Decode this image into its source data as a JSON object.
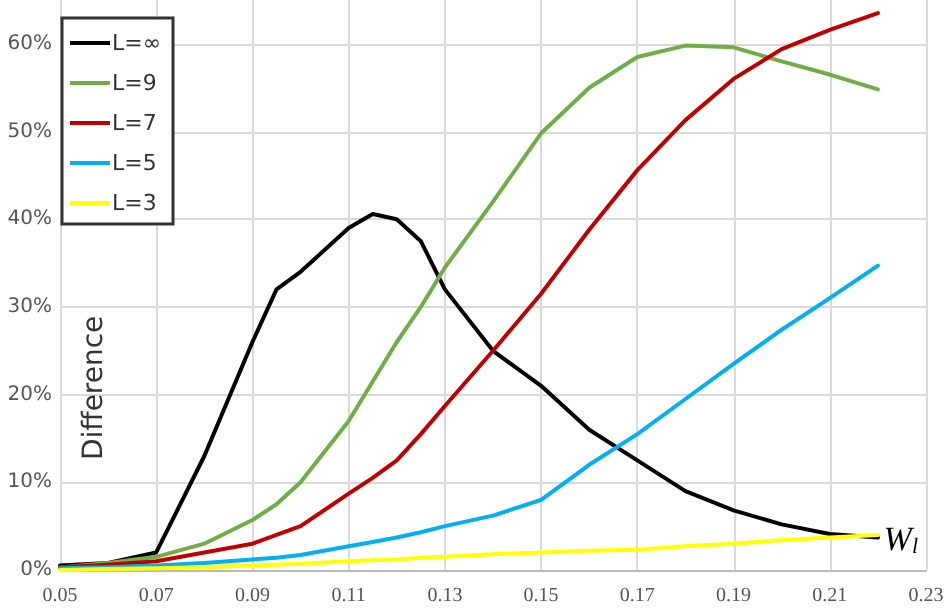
{
  "chart_data": {
    "type": "line",
    "xlabel": "W$_{l}$",
    "ylabel": "Difference",
    "x": [
      0.05,
      0.06,
      0.07,
      0.08,
      0.09,
      0.095,
      0.1,
      0.11,
      0.115,
      0.12,
      0.125,
      0.13,
      0.14,
      0.15,
      0.16,
      0.17,
      0.18,
      0.19,
      0.2,
      0.21,
      0.22
    ],
    "series": [
      {
        "name": "L=∞",
        "color": "#000000",
        "values": [
          0.5,
          0.8,
          2,
          13,
          26,
          32,
          34,
          39,
          40.6,
          40,
          37.5,
          32,
          25,
          21,
          16,
          12.5,
          9,
          6.8,
          5.2,
          4.1,
          3.7
        ]
      },
      {
        "name": "L=9",
        "color": "#70ad47",
        "values": [
          0.3,
          0.8,
          1.5,
          3,
          5.7,
          7.5,
          10,
          17,
          21.5,
          26,
          30,
          34.5,
          42,
          49.8,
          55,
          58.5,
          59.8,
          59.6,
          58,
          56.5,
          54.8
        ]
      },
      {
        "name": "L=7",
        "color": "#c00000",
        "values": [
          0.3,
          0.6,
          1,
          2,
          3,
          4,
          5,
          8.7,
          10.5,
          12.5,
          15.5,
          18.7,
          25,
          31.5,
          38.8,
          45.6,
          51.3,
          56,
          59.4,
          61.6,
          63.5
        ]
      },
      {
        "name": "L=5",
        "color": "#00b0f0",
        "values": [
          0.2,
          0.3,
          0.5,
          0.8,
          1.2,
          1.4,
          1.7,
          2.7,
          3.2,
          3.7,
          4.3,
          5,
          6.2,
          8,
          12,
          15.5,
          19.5,
          23.5,
          27.4,
          31,
          34.7
        ]
      },
      {
        "name": "L=3",
        "color": "#ffff00",
        "values": [
          0,
          0.1,
          0.2,
          0.3,
          0.5,
          0.6,
          0.7,
          1,
          1.1,
          1.2,
          1.4,
          1.5,
          1.8,
          2,
          2.2,
          2.3,
          2.7,
          3,
          3.4,
          3.7,
          4
        ]
      }
    ],
    "xlim": [
      0.05,
      0.23
    ],
    "xticks": [
      0.05,
      0.07,
      0.09,
      0.11,
      0.13,
      0.15,
      0.17,
      0.19,
      0.21,
      0.23
    ],
    "ylim": [
      0,
      65
    ],
    "yticks": [
      {
        "value": 0,
        "label": "0%"
      },
      {
        "value": 10,
        "label": "10%"
      },
      {
        "value": 20,
        "label": "20%"
      },
      {
        "value": 30,
        "label": "30%"
      },
      {
        "value": 40,
        "label": "40%"
      },
      {
        "value": 50,
        "label": "50%"
      },
      {
        "value": 60,
        "label": "60%"
      }
    ],
    "grid": true,
    "legend": "top left",
    "marker": "none",
    "line_style": "solid"
  }
}
